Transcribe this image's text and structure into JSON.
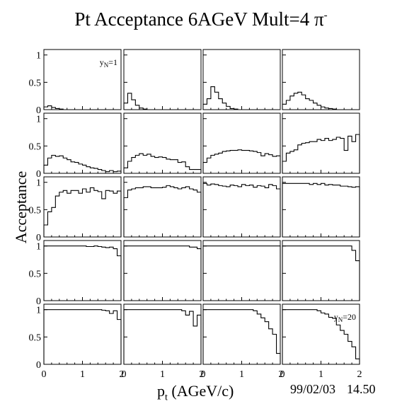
{
  "title": {
    "text": "Pt Acceptance 6AGeV Mult=4 π",
    "superscript": "-"
  },
  "ylabel": "Acceptance",
  "xlabel": {
    "main": "p",
    "sub": "t",
    "rest": " (AGeV/c)"
  },
  "footer": {
    "date": "99/02/03",
    "time": "14.50"
  },
  "chart_data": {
    "type": "histogram-grid",
    "rows": 5,
    "cols": 4,
    "xlim": [
      0,
      2
    ],
    "ylim": [
      0,
      1.1
    ],
    "xticks": [
      0,
      1,
      2
    ],
    "yticks": [
      0,
      0.5,
      1
    ],
    "xtick_labels": [
      "0",
      "1",
      "2"
    ],
    "ytick_labels": [
      "0",
      "0.5",
      "1"
    ],
    "annotations": [
      {
        "panel": 0,
        "label": "y",
        "sub": "N",
        "rest": "=1"
      },
      {
        "panel": 19,
        "label": "y",
        "sub": "N",
        "rest": "=20"
      }
    ],
    "panels": [
      {
        "values": [
          0.05,
          0.07,
          0.04,
          0.02,
          0.01,
          0,
          0,
          0,
          0,
          0,
          0,
          0,
          0,
          0,
          0,
          0,
          0,
          0,
          0,
          0
        ]
      },
      {
        "values": [
          0.12,
          0.3,
          0.18,
          0.08,
          0.03,
          0.01,
          0,
          0,
          0,
          0,
          0,
          0,
          0,
          0,
          0,
          0,
          0,
          0,
          0,
          0
        ]
      },
      {
        "values": [
          0.1,
          0.2,
          0.42,
          0.32,
          0.2,
          0.12,
          0.06,
          0.02,
          0.01,
          0,
          0,
          0,
          0,
          0,
          0,
          0,
          0,
          0,
          0,
          0
        ]
      },
      {
        "values": [
          0.1,
          0.17,
          0.25,
          0.3,
          0.32,
          0.27,
          0.2,
          0.17,
          0.12,
          0.08,
          0.05,
          0.03,
          0.02,
          0.01,
          0,
          0,
          0,
          0,
          0,
          0
        ]
      },
      {
        "values": [
          0.15,
          0.28,
          0.33,
          0.31,
          0.32,
          0.28,
          0.25,
          0.21,
          0.2,
          0.17,
          0.15,
          0.12,
          0.1,
          0.09,
          0.07,
          0.05,
          0.03,
          0.05,
          0.03,
          0.04
        ]
      },
      {
        "values": [
          0.1,
          0.22,
          0.29,
          0.33,
          0.36,
          0.33,
          0.35,
          0.31,
          0.29,
          0.3,
          0.29,
          0.26,
          0.25,
          0.25,
          0.2,
          0.21,
          0.12,
          0.07,
          0.07,
          0.07
        ]
      },
      {
        "values": [
          0.2,
          0.28,
          0.33,
          0.35,
          0.37,
          0.4,
          0.41,
          0.42,
          0.42,
          0.43,
          0.42,
          0.42,
          0.41,
          0.4,
          0.38,
          0.32,
          0.36,
          0.34,
          0.31,
          0.32
        ]
      },
      {
        "values": [
          0.22,
          0.37,
          0.4,
          0.43,
          0.52,
          0.55,
          0.56,
          0.58,
          0.58,
          0.62,
          0.6,
          0.64,
          0.6,
          0.62,
          0.66,
          0.64,
          0.42,
          0.68,
          0.58,
          0.71
        ]
      },
      {
        "values": [
          0.22,
          0.46,
          0.54,
          0.75,
          0.82,
          0.85,
          0.8,
          0.85,
          0.85,
          0.8,
          0.88,
          0.82,
          0.9,
          0.85,
          0.83,
          0.7,
          0.85,
          0.84,
          0.8,
          0.84
        ]
      },
      {
        "values": [
          0.72,
          0.86,
          0.88,
          0.9,
          0.9,
          0.92,
          0.92,
          0.9,
          0.9,
          0.9,
          0.91,
          0.94,
          0.92,
          0.9,
          0.88,
          0.9,
          0.92,
          0.88,
          0.86,
          0.82
        ]
      },
      {
        "values": [
          0.98,
          0.95,
          0.97,
          0.96,
          0.94,
          0.93,
          0.92,
          0.95,
          0.94,
          0.92,
          0.96,
          0.94,
          0.95,
          0.91,
          0.94,
          0.93,
          0.9,
          0.96,
          0.94,
          0.88
        ]
      },
      {
        "values": [
          0.98,
          0.98,
          0.98,
          0.98,
          0.98,
          0.98,
          0.98,
          0.96,
          0.98,
          0.96,
          0.98,
          0.95,
          0.96,
          0.95,
          0.95,
          0.93,
          0.93,
          0.92,
          0.91,
          0.92
        ]
      },
      {
        "values": [
          1,
          1,
          1,
          1,
          1,
          1,
          1,
          1,
          1,
          1,
          1,
          0.99,
          0.99,
          1,
          0.99,
          0.98,
          0.97,
          0.98,
          0.95,
          0.82
        ]
      },
      {
        "values": [
          1,
          1,
          1,
          1,
          1,
          1,
          1,
          1,
          1,
          1,
          1,
          1,
          1,
          1,
          1,
          1,
          1,
          0.98,
          0.98,
          0.95
        ]
      },
      {
        "values": [
          1,
          1,
          1,
          1,
          1,
          1,
          1,
          1,
          1,
          1,
          1,
          1,
          1,
          1,
          1,
          1,
          1,
          1,
          1,
          1
        ]
      },
      {
        "values": [
          1,
          1,
          1,
          1,
          1,
          1,
          1,
          1,
          1,
          1,
          1,
          1,
          1,
          1,
          1,
          1,
          1,
          1,
          0.92,
          0.73
        ]
      },
      {
        "values": [
          1,
          1,
          1,
          1,
          1,
          1,
          1,
          1,
          1,
          1,
          1,
          1,
          1,
          1,
          1,
          0.99,
          0.98,
          0.93,
          0.98,
          0.82
        ]
      },
      {
        "values": [
          1,
          1,
          1,
          1,
          1,
          1,
          1,
          1,
          1,
          1,
          1,
          1,
          1,
          1,
          1,
          0.98,
          0.9,
          0.97,
          0.7,
          0.9
        ]
      },
      {
        "values": [
          1,
          1,
          1,
          1,
          1,
          1,
          1,
          1,
          1,
          1,
          1,
          1,
          1,
          0.98,
          0.92,
          0.85,
          0.78,
          0.65,
          0.55,
          0.2
        ]
      },
      {
        "values": [
          1,
          1,
          1,
          1,
          1,
          1,
          1,
          1,
          1,
          0.98,
          0.94,
          0.92,
          0.86,
          0.84,
          0.72,
          0.62,
          0.55,
          0.42,
          0.32,
          0.1
        ]
      }
    ]
  }
}
